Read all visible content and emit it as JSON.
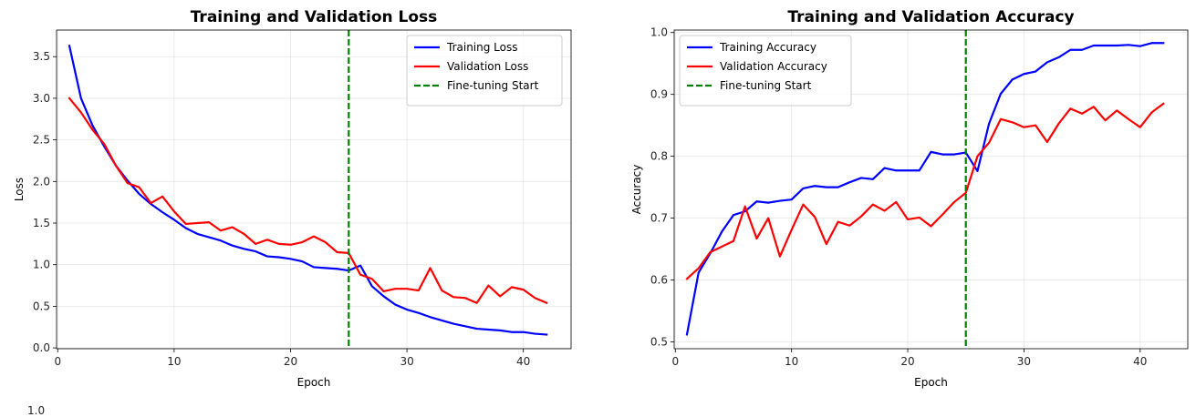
{
  "chart_data": [
    {
      "type": "line",
      "title": "Training and Validation Loss",
      "xlabel": "Epoch",
      "ylabel": "Loss",
      "xlim": [
        -0.1,
        44.1
      ],
      "ylim": [
        -0.01,
        3.82
      ],
      "xticks": [
        0,
        10,
        20,
        30,
        40
      ],
      "yticks": [
        0.0,
        0.5,
        1.0,
        1.5,
        2.0,
        2.5,
        3.0,
        3.5
      ],
      "ytick_decimals": 1,
      "grid": true,
      "legend": "top-right",
      "vline": {
        "x": 25,
        "label": "Fine-tuning Start",
        "color": "#008000"
      },
      "x": [
        1,
        2,
        3,
        4,
        5,
        6,
        7,
        8,
        9,
        10,
        11,
        12,
        13,
        14,
        15,
        16,
        17,
        18,
        19,
        20,
        21,
        22,
        23,
        24,
        25,
        26,
        27,
        28,
        29,
        30,
        31,
        32,
        33,
        34,
        35,
        36,
        37,
        38,
        39,
        40,
        41,
        42
      ],
      "series": [
        {
          "name": "Training Loss",
          "color": "#0000ff",
          "values": [
            3.63,
            3.0,
            2.67,
            2.42,
            2.19,
            2.01,
            1.85,
            1.73,
            1.63,
            1.54,
            1.44,
            1.37,
            1.33,
            1.29,
            1.23,
            1.19,
            1.16,
            1.1,
            1.09,
            1.07,
            1.04,
            0.97,
            0.96,
            0.95,
            0.93,
            0.99,
            0.74,
            0.62,
            0.52,
            0.46,
            0.42,
            0.37,
            0.33,
            0.29,
            0.26,
            0.23,
            0.22,
            0.21,
            0.19,
            0.19,
            0.17,
            0.16
          ]
        },
        {
          "name": "Validation Loss",
          "color": "#ff0000",
          "values": [
            3.0,
            2.83,
            2.62,
            2.45,
            2.19,
            1.98,
            1.93,
            1.74,
            1.82,
            1.64,
            1.49,
            1.5,
            1.51,
            1.41,
            1.45,
            1.37,
            1.25,
            1.3,
            1.25,
            1.24,
            1.27,
            1.34,
            1.27,
            1.15,
            1.14,
            0.88,
            0.83,
            0.68,
            0.71,
            0.71,
            0.69,
            0.96,
            0.69,
            0.61,
            0.6,
            0.54,
            0.75,
            0.62,
            0.73,
            0.7,
            0.6,
            0.54
          ]
        }
      ]
    },
    {
      "type": "line",
      "title": "Training and Validation Accuracy",
      "xlabel": "Epoch",
      "ylabel": "Accuracy",
      "xlim": [
        -0.1,
        44.1
      ],
      "ylim": [
        0.489,
        1.004
      ],
      "xticks": [
        0,
        10,
        20,
        30,
        40
      ],
      "yticks": [
        0.5,
        0.6,
        0.7,
        0.8,
        0.9,
        1.0
      ],
      "ytick_decimals": 1,
      "grid": true,
      "legend": "top-left",
      "vline": {
        "x": 25,
        "label": "Fine-tuning Start",
        "color": "#008000"
      },
      "x": [
        1,
        2,
        3,
        4,
        5,
        6,
        7,
        8,
        9,
        10,
        11,
        12,
        13,
        14,
        15,
        16,
        17,
        18,
        19,
        20,
        21,
        22,
        23,
        24,
        25,
        26,
        27,
        28,
        29,
        30,
        31,
        32,
        33,
        34,
        35,
        36,
        37,
        38,
        39,
        40,
        41,
        42
      ],
      "series": [
        {
          "name": "Training Accuracy",
          "color": "#0000ff",
          "values": [
            0.512,
            0.612,
            0.643,
            0.678,
            0.705,
            0.711,
            0.727,
            0.725,
            0.728,
            0.73,
            0.748,
            0.752,
            0.75,
            0.75,
            0.758,
            0.765,
            0.763,
            0.781,
            0.777,
            0.777,
            0.777,
            0.807,
            0.803,
            0.803,
            0.806,
            0.776,
            0.853,
            0.901,
            0.924,
            0.933,
            0.937,
            0.952,
            0.96,
            0.972,
            0.972,
            0.979,
            0.979,
            0.979,
            0.98,
            0.978,
            0.983,
            0.983
          ]
        },
        {
          "name": "Validation Accuracy",
          "color": "#ff0000",
          "values": [
            0.602,
            0.619,
            0.645,
            0.654,
            0.663,
            0.719,
            0.667,
            0.7,
            0.638,
            0.681,
            0.722,
            0.702,
            0.658,
            0.694,
            0.688,
            0.703,
            0.722,
            0.712,
            0.726,
            0.698,
            0.701,
            0.687,
            0.706,
            0.726,
            0.741,
            0.8,
            0.822,
            0.86,
            0.855,
            0.847,
            0.85,
            0.823,
            0.853,
            0.877,
            0.869,
            0.88,
            0.858,
            0.874,
            0.86,
            0.847,
            0.871,
            0.885
          ]
        }
      ]
    }
  ],
  "cutoff_tick": "1.0"
}
